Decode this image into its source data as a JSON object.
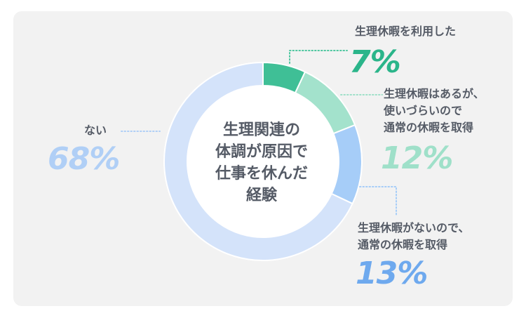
{
  "chart_data": {
    "type": "pie",
    "title": "生理関連の\n体調が原因で\n仕事を休んだ\n経験",
    "series": [
      {
        "label": "生理休暇を利用した",
        "value": 7,
        "value_label": "7%",
        "color": "#3fbf96"
      },
      {
        "label": "生理休暇はあるが、\n使いづらいので\n通常の休暇を取得",
        "value": 12,
        "value_label": "12%",
        "color": "#a3e2cc"
      },
      {
        "label": "生理休暇がないので、\n通常の休暇を取得",
        "value": 13,
        "value_label": "13%",
        "color": "#a6cdf8"
      },
      {
        "label": "ない",
        "value": 68,
        "value_label": "68%",
        "color": "#d4e3fa"
      }
    ]
  },
  "colors": {
    "background": "#f2f2f2",
    "label_text": "#555b66",
    "pct_green": "#2bb58a",
    "pct_mint": "#9fe0c9",
    "pct_blue": "#6ea9ee",
    "pct_lightblue": "#b0cff6",
    "leader_dots": "#8fd6bd"
  }
}
